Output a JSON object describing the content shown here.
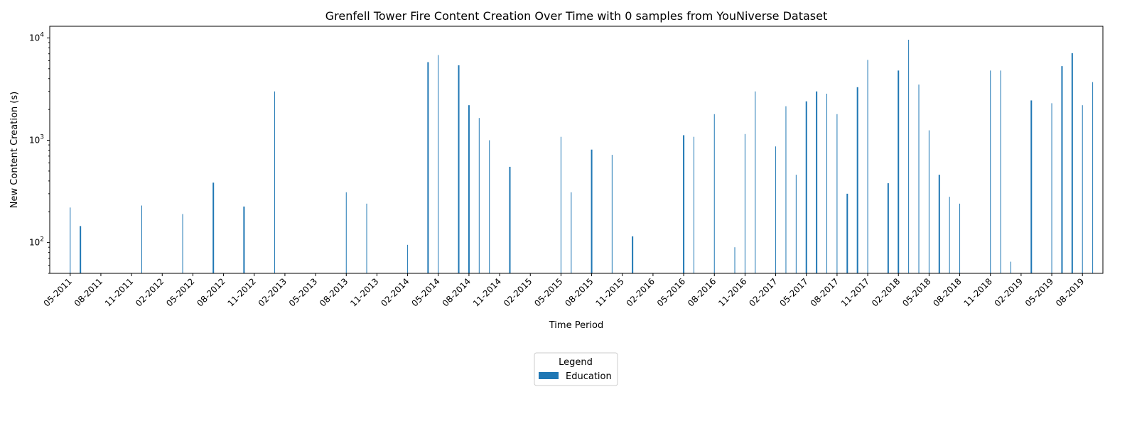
{
  "chart_data": {
    "type": "bar",
    "title": "Grenfell Tower Fire Content Creation Over Time with 0 samples from YouNiverse Dataset",
    "xlabel": "Time Period",
    "ylabel": "New Content Creation (s)",
    "yscale": "log",
    "ylim": [
      50,
      13000
    ],
    "y_ticks": [
      {
        "value": 100,
        "base": "10",
        "exp": "2"
      },
      {
        "value": 1000,
        "base": "10",
        "exp": "3"
      },
      {
        "value": 10000,
        "base": "10",
        "exp": "4"
      }
    ],
    "x_range": [
      "2011-03",
      "2019-10"
    ],
    "x_tick_labels": [
      "05-2011",
      "08-2011",
      "11-2011",
      "02-2012",
      "05-2012",
      "08-2012",
      "11-2012",
      "02-2013",
      "05-2013",
      "08-2013",
      "11-2013",
      "02-2014",
      "05-2014",
      "08-2014",
      "11-2014",
      "02-2015",
      "05-2015",
      "08-2015",
      "11-2015",
      "02-2016",
      "05-2016",
      "08-2016",
      "11-2016",
      "02-2017",
      "05-2017",
      "08-2017",
      "11-2017",
      "02-2018",
      "05-2018",
      "08-2018",
      "11-2018",
      "02-2019",
      "05-2019",
      "08-2019"
    ],
    "legend": {
      "title": "Legend",
      "position": "bottom-center",
      "entries": [
        "Education"
      ]
    },
    "grid": false,
    "colors": {
      "bar": "#1f77b4"
    },
    "series": [
      {
        "name": "Education",
        "points": [
          {
            "date": "2011-05",
            "value": 220
          },
          {
            "date": "2011-06",
            "value": 145,
            "thick": true
          },
          {
            "date": "2011-12",
            "value": 230
          },
          {
            "date": "2012-04",
            "value": 190
          },
          {
            "date": "2012-07",
            "value": 385,
            "thick": true
          },
          {
            "date": "2012-10",
            "value": 225,
            "thick": true
          },
          {
            "date": "2013-01",
            "value": 3000
          },
          {
            "date": "2013-08",
            "value": 310
          },
          {
            "date": "2013-10",
            "value": 240
          },
          {
            "date": "2014-02",
            "value": 95
          },
          {
            "date": "2014-04",
            "value": 5800,
            "thick": true
          },
          {
            "date": "2014-05",
            "value": 6800
          },
          {
            "date": "2014-07",
            "value": 5400,
            "thick": true
          },
          {
            "date": "2014-08",
            "value": 2200,
            "thick": true
          },
          {
            "date": "2014-09",
            "value": 1650
          },
          {
            "date": "2014-10",
            "value": 1000
          },
          {
            "date": "2014-12",
            "value": 550,
            "thick": true
          },
          {
            "date": "2015-05",
            "value": 1080
          },
          {
            "date": "2015-06",
            "value": 310
          },
          {
            "date": "2015-08",
            "value": 810,
            "thick": true
          },
          {
            "date": "2015-10",
            "value": 720
          },
          {
            "date": "2015-12",
            "value": 115,
            "thick": true
          },
          {
            "date": "2016-05",
            "value": 1120,
            "thick": true
          },
          {
            "date": "2016-06",
            "value": 1080
          },
          {
            "date": "2016-08",
            "value": 1800
          },
          {
            "date": "2016-10",
            "value": 90
          },
          {
            "date": "2016-11",
            "value": 1150
          },
          {
            "date": "2016-12",
            "value": 3000
          },
          {
            "date": "2017-02",
            "value": 870
          },
          {
            "date": "2017-03",
            "value": 2150
          },
          {
            "date": "2017-04",
            "value": 460
          },
          {
            "date": "2017-05",
            "value": 2400,
            "thick": true
          },
          {
            "date": "2017-06",
            "value": 3000,
            "thick": true
          },
          {
            "date": "2017-07",
            "value": 2850
          },
          {
            "date": "2017-08",
            "value": 1800
          },
          {
            "date": "2017-09",
            "value": 300,
            "thick": true
          },
          {
            "date": "2017-10",
            "value": 3300,
            "thick": true
          },
          {
            "date": "2017-11",
            "value": 6100
          },
          {
            "date": "2018-01",
            "value": 380,
            "thick": true
          },
          {
            "date": "2018-02",
            "value": 4800,
            "thick": true
          },
          {
            "date": "2018-03",
            "value": 9600
          },
          {
            "date": "2018-04",
            "value": 3500
          },
          {
            "date": "2018-05",
            "value": 1250
          },
          {
            "date": "2018-06",
            "value": 460,
            "thick": true
          },
          {
            "date": "2018-07",
            "value": 280
          },
          {
            "date": "2018-08",
            "value": 240
          },
          {
            "date": "2018-11",
            "value": 4800
          },
          {
            "date": "2018-12",
            "value": 4800
          },
          {
            "date": "2019-01",
            "value": 65
          },
          {
            "date": "2019-03",
            "value": 2450,
            "thick": true
          },
          {
            "date": "2019-05",
            "value": 2300
          },
          {
            "date": "2019-06",
            "value": 5300,
            "thick": true
          },
          {
            "date": "2019-07",
            "value": 7100,
            "thick": true
          },
          {
            "date": "2019-08",
            "value": 2200
          },
          {
            "date": "2019-09",
            "value": 3700
          }
        ]
      }
    ]
  }
}
